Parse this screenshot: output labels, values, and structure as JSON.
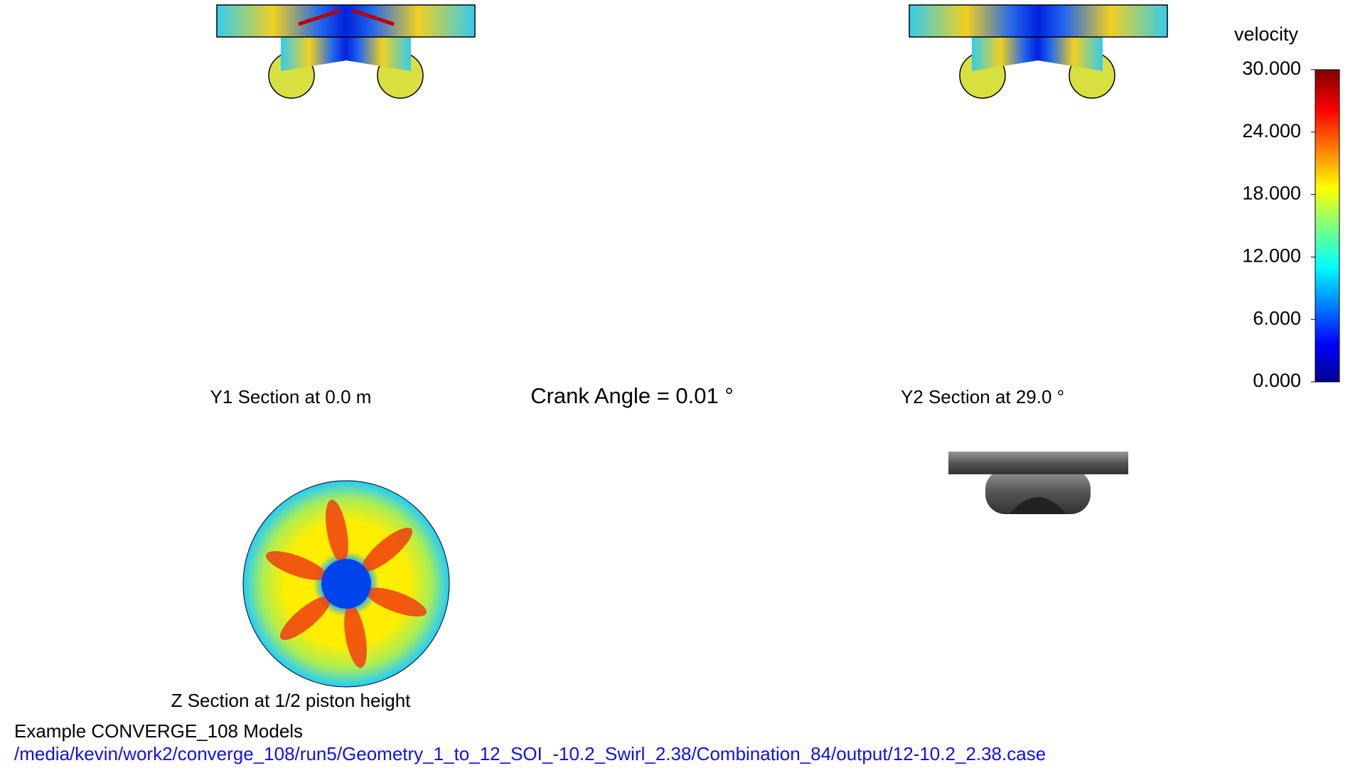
{
  "colorbar": {
    "title": "velocity",
    "ticks": [
      {
        "value": 30,
        "label": "30.000"
      },
      {
        "value": 24,
        "label": "24.000"
      },
      {
        "value": 18,
        "label": "18.000"
      },
      {
        "value": 12,
        "label": "12.000"
      },
      {
        "value": 6,
        "label": "6.000"
      },
      {
        "value": 0,
        "label": "0.000"
      }
    ],
    "range": [
      0,
      30
    ]
  },
  "labels": {
    "y1": "Y1 Section at 0.0 m",
    "crank": "Crank Angle = 0.01 °",
    "y2": "Y2 Section at 29.0 °",
    "z": "Z Section at 1/2 piston height"
  },
  "footer": {
    "title": "Example CONVERGE_108 Models",
    "path": "/media/kevin/work2/converge_108/run5/Geometry_1_to_12_SOI_-10.2_Swirl_2.38/Combination_84/output/12-10.2_2.38.case"
  }
}
